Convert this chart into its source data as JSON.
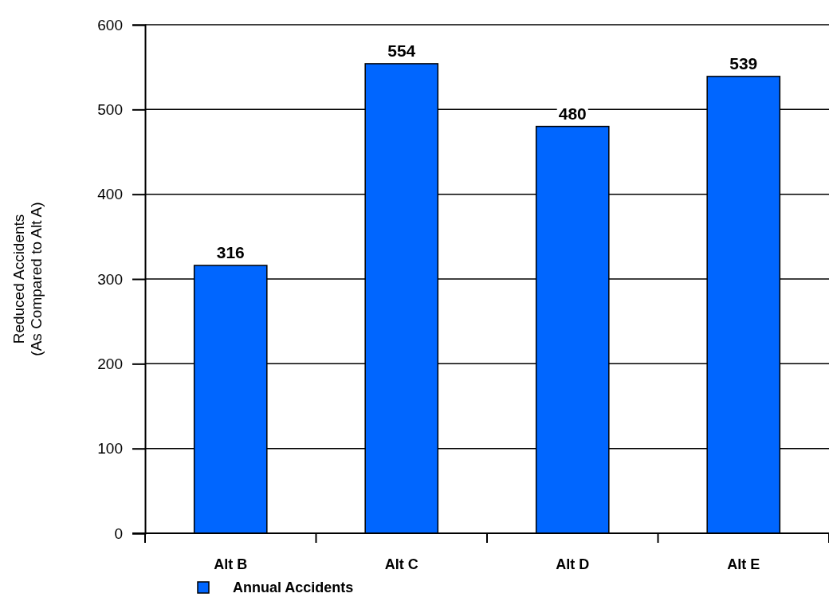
{
  "chart_data": {
    "type": "bar",
    "ylabel": "Reduced Accidents\n(As Compared to Alt A)",
    "categories": [
      "Alt B",
      "Alt C",
      "Alt D",
      "Alt E"
    ],
    "series": [
      {
        "name": "Annual Accidents",
        "color": "#0066ff",
        "values": [
          316,
          554,
          480,
          539
        ]
      }
    ],
    "ylim": [
      0,
      600
    ],
    "yticks": [
      0,
      100,
      200,
      300,
      400,
      500,
      600
    ],
    "grid": "y",
    "data_labels": true,
    "legend": "bottom left"
  }
}
